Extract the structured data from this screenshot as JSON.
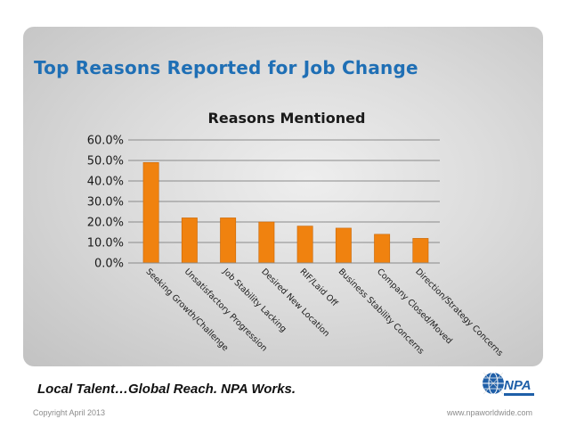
{
  "slide": {
    "title": "Top Reasons Reported for Job Change",
    "tagline": "Local Talent…Global Reach.  NPA Works.",
    "copyright": "Copyright April 2013",
    "website": "www.npaworldwide.com",
    "logo_text": "NPA"
  },
  "colors": {
    "title": "#1f6fb5",
    "bar": "#f0820f",
    "bar_edge": "#c8680a",
    "gridline": "#8a8a8a"
  },
  "icons": {
    "logo": "globe-icon"
  },
  "chart_data": {
    "type": "bar",
    "title": "Reasons Mentioned",
    "xlabel": "",
    "ylabel": "",
    "ylim": [
      0,
      0.6
    ],
    "grid": true,
    "legend": "none",
    "ytick_labels": [
      "0.0%",
      "10.0%",
      "20.0%",
      "30.0%",
      "40.0%",
      "50.0%",
      "60.0%"
    ],
    "categories": [
      "Seeking Growth/Challenge",
      "Unsatisfactory Progression",
      "Job Stability Lacking",
      "Desired New Location",
      "RIF/Laid Off",
      "Business Stability Concerns",
      "Company Closed/Moved",
      "Direction/Strategy Concerns"
    ],
    "values": [
      0.49,
      0.22,
      0.22,
      0.2,
      0.18,
      0.17,
      0.14,
      0.12
    ]
  }
}
